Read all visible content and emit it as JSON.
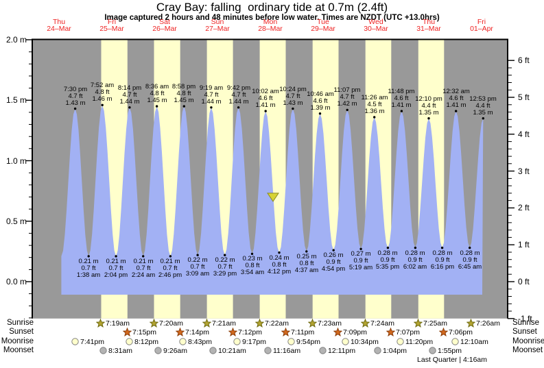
{
  "title": "Cray Bay: falling  ordinary tide at 0.7m (2.4ft)",
  "subtitle": "Image captured 2 hours and 48 minutes before low water. Times are NZDT (UTC +13.0hrs)",
  "days": [
    {
      "name": "Thu",
      "date": "24–Mar"
    },
    {
      "name": "Fri",
      "date": "25–Mar"
    },
    {
      "name": "Sat",
      "date": "26–Mar"
    },
    {
      "name": "Sun",
      "date": "27–Mar"
    },
    {
      "name": "Mon",
      "date": "28–Mar"
    },
    {
      "name": "Tue",
      "date": "29–Mar"
    },
    {
      "name": "Wed",
      "date": "30–Mar"
    },
    {
      "name": "Thu",
      "date": "31–Mar"
    },
    {
      "name": "Fri",
      "date": "01–Apr"
    }
  ],
  "chart_data": {
    "type": "area",
    "grid": false,
    "legend_position": "none",
    "y_axis_left": {
      "unit": "m",
      "ticks": [
        "2.0 m",
        "1.5 m",
        "1.0 m",
        "0.5 m",
        "0.0 m"
      ],
      "tick_values": [
        2.0,
        1.5,
        1.0,
        0.5,
        0.0
      ],
      "range_m": [
        -0.3,
        2.0
      ]
    },
    "y_axis_right": {
      "unit": "ft",
      "ticks": [
        "6 ft",
        "5 ft",
        "4 ft",
        "3 ft",
        "2 ft",
        "1 ft",
        "0 ft",
        "-1 ft"
      ],
      "tick_values": [
        6,
        5,
        4,
        3,
        2,
        1,
        0,
        -1
      ]
    },
    "high_tides": [
      {
        "time": "7:30 pm",
        "ft": "4.7 ft",
        "m": "1.43 m",
        "day_index": 0
      },
      {
        "time": "7:52 am",
        "ft": "4.8 ft",
        "m": "1.46 m",
        "day_index": 1
      },
      {
        "time": "8:14 pm",
        "ft": "4.7 ft",
        "m": "1.44 m",
        "day_index": 1
      },
      {
        "time": "8:36 am",
        "ft": "4.8 ft",
        "m": "1.45 m",
        "day_index": 2
      },
      {
        "time": "8:58 pm",
        "ft": "4.8 ft",
        "m": "1.45 m",
        "day_index": 2
      },
      {
        "time": "9:19 am",
        "ft": "4.7 ft",
        "m": "1.44 m",
        "day_index": 3
      },
      {
        "time": "9:42 pm",
        "ft": "4.7 ft",
        "m": "1.44 m",
        "day_index": 3
      },
      {
        "time": "10:02 am",
        "ft": "4.6 ft",
        "m": "1.41 m",
        "day_index": 4
      },
      {
        "time": "10:24 pm",
        "ft": "4.7 ft",
        "m": "1.43 m",
        "day_index": 4
      },
      {
        "time": "10:46 am",
        "ft": "4.6 ft",
        "m": "1.39 m",
        "day_index": 5
      },
      {
        "time": "11:07 pm",
        "ft": "4.7 ft",
        "m": "1.42 m",
        "day_index": 5
      },
      {
        "time": "11:26 am",
        "ft": "4.5 ft",
        "m": "1.36 m",
        "day_index": 6
      },
      {
        "time": "11:48 pm",
        "ft": "4.6 ft",
        "m": "1.41 m",
        "day_index": 6
      },
      {
        "time": "12:10 pm",
        "ft": "4.4 ft",
        "m": "1.35 m",
        "day_index": 7
      },
      {
        "time": "12:32 am",
        "ft": "4.6 ft",
        "m": "1.41 m",
        "day_index": 8
      },
      {
        "time": "12:53 pm",
        "ft": "4.4 ft",
        "m": "1.35 m",
        "day_index": 8
      }
    ],
    "low_tides": [
      {
        "m": "0.21 m",
        "ft": "0.7 ft",
        "time": "1:38 am",
        "day_index": 1
      },
      {
        "m": "0.21 m",
        "ft": "0.7 ft",
        "time": "2:04 pm",
        "day_index": 1
      },
      {
        "m": "0.21 m",
        "ft": "0.7 ft",
        "time": "2:24 am",
        "day_index": 2
      },
      {
        "m": "0.21 m",
        "ft": "0.7 ft",
        "time": "2:46 pm",
        "day_index": 2
      },
      {
        "m": "0.22 m",
        "ft": "0.7 ft",
        "time": "3:09 am",
        "day_index": 3
      },
      {
        "m": "0.22 m",
        "ft": "0.7 ft",
        "time": "3:29 pm",
        "day_index": 3
      },
      {
        "m": "0.23 m",
        "ft": "0.8 ft",
        "time": "3:54 am",
        "day_index": 4
      },
      {
        "m": "0.24 m",
        "ft": "0.8 ft",
        "time": "4:12 pm",
        "day_index": 4
      },
      {
        "m": "0.25 m",
        "ft": "0.8 ft",
        "time": "4:37 am",
        "day_index": 5
      },
      {
        "m": "0.26 m",
        "ft": "0.9 ft",
        "time": "4:54 pm",
        "day_index": 5
      },
      {
        "m": "0.27 m",
        "ft": "0.9 ft",
        "time": "5:19 am",
        "day_index": 6
      },
      {
        "m": "0.28 m",
        "ft": "0.9 ft",
        "time": "5:35 pm",
        "day_index": 6
      },
      {
        "m": "0.28 m",
        "ft": "0.9 ft",
        "time": "6:02 am",
        "day_index": 7
      },
      {
        "m": "0.28 m",
        "ft": "0.9 ft",
        "time": "6:16 pm",
        "day_index": 7
      },
      {
        "m": "0.28 m",
        "ft": "0.9 ft",
        "time": "6:45 am",
        "day_index": 8
      }
    ],
    "current_marker": {
      "day_index": 4,
      "hour": 13.4,
      "height_m": 0.7
    }
  },
  "astronomy": {
    "rows": [
      {
        "label": "Sunrise",
        "icon": "sunrise-star-icon",
        "events": [
          {
            "time": "7:19am",
            "day_index": 1
          },
          {
            "time": "7:20am",
            "day_index": 2
          },
          {
            "time": "7:21am",
            "day_index": 3
          },
          {
            "time": "7:22am",
            "day_index": 4
          },
          {
            "time": "7:23am",
            "day_index": 5
          },
          {
            "time": "7:24am",
            "day_index": 6
          },
          {
            "time": "7:25am",
            "day_index": 7
          },
          {
            "time": "7:26am",
            "day_index": 8
          }
        ]
      },
      {
        "label": "Sunset",
        "icon": "sunset-star-icon",
        "events": [
          {
            "time": "7:15pm",
            "day_index": 1
          },
          {
            "time": "7:14pm",
            "day_index": 2
          },
          {
            "time": "7:12pm",
            "day_index": 3
          },
          {
            "time": "7:11pm",
            "day_index": 4
          },
          {
            "time": "7:09pm",
            "day_index": 5
          },
          {
            "time": "7:07pm",
            "day_index": 6
          },
          {
            "time": "7:06pm",
            "day_index": 7
          }
        ]
      },
      {
        "label": "Moonrise",
        "icon": "moonrise-circle-icon",
        "events": [
          {
            "time": "7:41pm",
            "day_index": 0
          },
          {
            "time": "8:12pm",
            "day_index": 1
          },
          {
            "time": "8:43pm",
            "day_index": 2
          },
          {
            "time": "9:17pm",
            "day_index": 3
          },
          {
            "time": "9:54pm",
            "day_index": 4
          },
          {
            "time": "10:34pm",
            "day_index": 5
          },
          {
            "time": "11:20pm",
            "day_index": 6
          },
          {
            "time": "12:10am",
            "day_index": 8
          }
        ]
      },
      {
        "label": "Moonset",
        "icon": "moonset-circle-icon",
        "events": [
          {
            "time": "8:31am",
            "day_index": 1
          },
          {
            "time": "9:26am",
            "day_index": 2
          },
          {
            "time": "10:21am",
            "day_index": 3
          },
          {
            "time": "11:16am",
            "day_index": 4
          },
          {
            "time": "12:11pm",
            "day_index": 5
          },
          {
            "time": "1:04pm",
            "day_index": 6
          },
          {
            "time": "1:55pm",
            "day_index": 7
          }
        ]
      }
    ],
    "moon_phase": "Last Quarter | 4:16am"
  },
  "colors": {
    "background": "#ffffff",
    "plot_night": "#999999",
    "plot_day": "#ffffcc",
    "tide_fill": "#a2b1f4",
    "day_label": "#ee2222",
    "axis": "#000000",
    "sunrise_star": "#b3a431",
    "sunrise_star_border": "#6e6a10",
    "sunset_star": "#d2691e",
    "sunset_star_border": "#8a3c08",
    "moonrise_circle": "#ffffcc",
    "moonset_circle": "#b3b3b3",
    "moon_circle_border": "#808080",
    "marker_fill": "#d6d334",
    "marker_border": "#8a8a20"
  }
}
